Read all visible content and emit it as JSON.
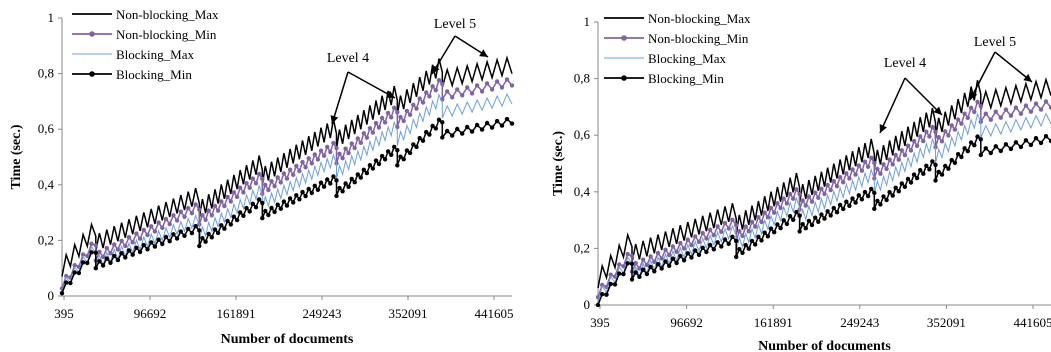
{
  "chart_data": [
    {
      "type": "line",
      "title": "",
      "xlabel": "Number of documents",
      "ylabel": "Time (sec.)",
      "ylim": [
        0,
        1
      ],
      "yticks": [
        "0",
        "0,2",
        "0,4",
        "0,6",
        "0,8",
        "1"
      ],
      "ytick_values": [
        0,
        0.2,
        0.4,
        0.6,
        0.8,
        1.0
      ],
      "categories": [
        "395",
        "96692",
        "161891",
        "249243",
        "352091",
        "441605"
      ],
      "grid": false,
      "legend_position": "top-left",
      "annotations": [
        "Level 4",
        "Level 5"
      ],
      "series": [
        {
          "name": "Non-blocking_Max",
          "color": "#000000",
          "marker": "none",
          "offset": 0.09,
          "zigzag": 0.06,
          "segment_steps": [
            0.1,
            0.19,
            0.31,
            0.43,
            0.56,
            0.68,
            0.78
          ]
        },
        {
          "name": "Non-blocking_Min",
          "color": "#8064a2",
          "marker": "circle",
          "offset": 0.04,
          "zigzag": 0.025,
          "segment_steps": [
            0.04,
            0.14,
            0.27,
            0.38,
            0.49,
            0.62,
            0.72
          ]
        },
        {
          "name": "Blocking_Max",
          "color": "#6f9fd8",
          "marker": "none",
          "offset": 0.0,
          "zigzag": 0.04,
          "segment_steps": [
            0.03,
            0.12,
            0.22,
            0.33,
            0.44,
            0.56,
            0.66
          ]
        },
        {
          "name": "Blocking_Min",
          "color": "#000000",
          "marker": "circle",
          "offset": -0.04,
          "zigzag": 0.02,
          "segment_steps": [
            0.02,
            0.11,
            0.19,
            0.29,
            0.37,
            0.48,
            0.58
          ]
        }
      ]
    },
    {
      "type": "line",
      "title": "",
      "xlabel": "Number of documents",
      "ylabel": "Time (sec.)",
      "ylim": [
        0,
        1
      ],
      "yticks": [
        "0",
        "0,2",
        "0,4",
        "0,6",
        "0,8",
        "1"
      ],
      "ytick_values": [
        0,
        0.2,
        0.4,
        0.6,
        0.8,
        1.0
      ],
      "categories": [
        "395",
        "96692",
        "161891",
        "249243",
        "352091",
        "441605"
      ],
      "grid": false,
      "legend_position": "top-left",
      "annotations": [
        "Level 4",
        "Level 5"
      ],
      "series": [
        {
          "name": "Non-blocking_Max",
          "color": "#000000",
          "marker": "none",
          "offset": 0.08,
          "zigzag": 0.06,
          "segment_steps": [
            0.09,
            0.18,
            0.28,
            0.39,
            0.51,
            0.62,
            0.72
          ]
        },
        {
          "name": "Non-blocking_Min",
          "color": "#8064a2",
          "marker": "circle",
          "offset": 0.04,
          "zigzag": 0.025,
          "segment_steps": [
            0.04,
            0.13,
            0.24,
            0.35,
            0.46,
            0.57,
            0.66
          ]
        },
        {
          "name": "Blocking_Max",
          "color": "#6f9fd8",
          "marker": "none",
          "offset": 0.0,
          "zigzag": 0.04,
          "segment_steps": [
            0.03,
            0.11,
            0.21,
            0.31,
            0.41,
            0.52,
            0.61
          ]
        },
        {
          "name": "Blocking_Min",
          "color": "#000000",
          "marker": "circle",
          "offset": -0.04,
          "zigzag": 0.02,
          "segment_steps": [
            0.01,
            0.1,
            0.18,
            0.27,
            0.35,
            0.45,
            0.54
          ]
        }
      ]
    }
  ]
}
